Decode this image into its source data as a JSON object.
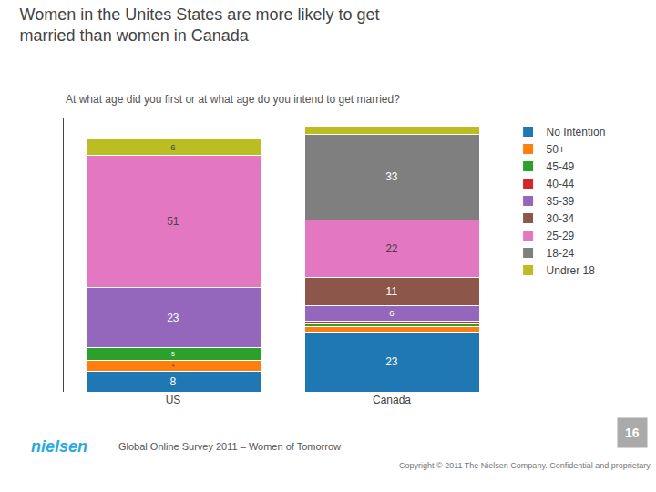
{
  "chart_data": {
    "type": "bar",
    "stacked": true,
    "title": "Women in the Unites States are more likely to get\nmarried than women in Canada",
    "subtitle": "At what age did you first or at what age do you intend to get married?",
    "categories": [
      "US",
      "Canada"
    ],
    "series": [
      {
        "name": "No Intention",
        "values": [
          8,
          23
        ],
        "value_labels": [
          "8",
          "23"
        ]
      },
      {
        "name": "50+",
        "values": [
          4,
          2
        ],
        "value_labels": [
          "4",
          null
        ]
      },
      {
        "name": "45-49",
        "values": [
          5,
          1
        ],
        "value_labels": [
          "5",
          null
        ]
      },
      {
        "name": "40-44",
        "values": [
          0,
          1
        ],
        "value_labels": [
          null,
          null
        ]
      },
      {
        "name": "35-39",
        "values": [
          23,
          6
        ],
        "value_labels": [
          "23",
          "6"
        ]
      },
      {
        "name": "30-34",
        "values": [
          0,
          11
        ],
        "value_labels": [
          null,
          "11"
        ]
      },
      {
        "name": "25-29",
        "values": [
          51,
          22
        ],
        "value_labels": [
          "51",
          "22"
        ]
      },
      {
        "name": "18-24",
        "values": [
          0,
          33
        ],
        "value_labels": [
          null,
          "33"
        ]
      },
      {
        "name": "Undrer 18",
        "values": [
          6,
          3
        ],
        "value_labels": [
          "6",
          null
        ]
      }
    ],
    "ylim": [
      0,
      105
    ],
    "data_labels": true,
    "tick_labels": "x",
    "grid": false,
    "legend": "right",
    "annotations": [
      "Global Online Survey 2011 – Women of Tomorrow",
      "Copyright © 2011 The Nielsen Company. Confidential and proprietary.",
      "nielsen",
      "16"
    ]
  }
}
